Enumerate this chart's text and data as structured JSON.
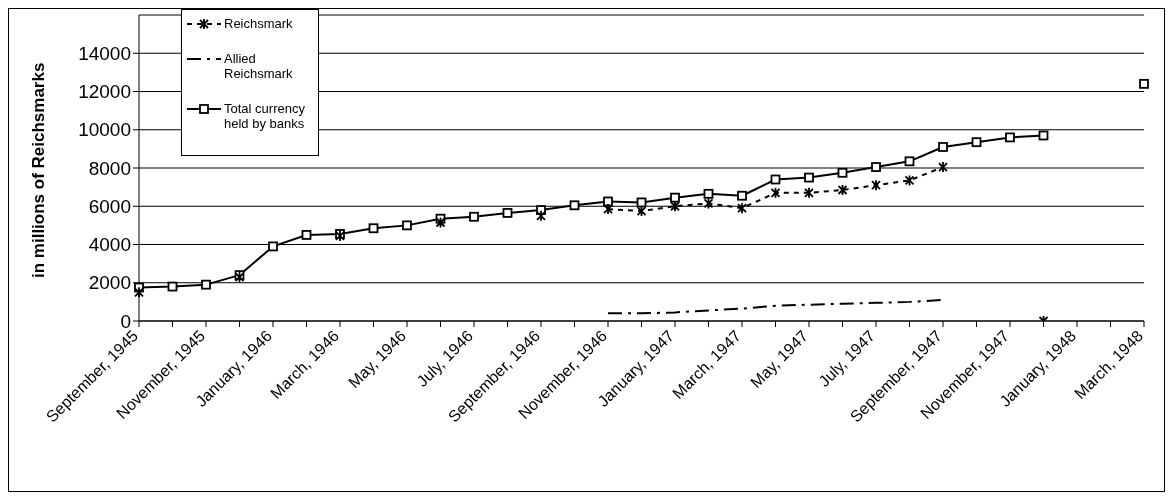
{
  "chart_data": {
    "type": "line",
    "categories": [
      "September, 1945",
      null,
      "November, 1945",
      null,
      "January, 1946",
      null,
      "March, 1946",
      null,
      "May, 1946",
      null,
      "July, 1946",
      null,
      "September, 1946",
      null,
      "November, 1946",
      null,
      "January, 1947",
      null,
      "March, 1947",
      null,
      "May, 1947",
      null,
      "July, 1947",
      null,
      "September, 1947",
      null,
      "November, 1947",
      null,
      "January, 1948",
      null,
      "March, 1948"
    ],
    "series": [
      {
        "name": "Reichsmark",
        "color": "#000000",
        "marker": "cross",
        "line_style": "dashed",
        "values": [
          1500,
          null,
          null,
          2300,
          null,
          null,
          4450,
          null,
          null,
          5150,
          null,
          null,
          5500,
          null,
          5850,
          5750,
          6000,
          6150,
          5900,
          6700,
          6700,
          6850,
          7100,
          7350,
          8050,
          null,
          null,
          0,
          null,
          null,
          null
        ]
      },
      {
        "name": "Allied Reichsmark",
        "color": "#000000",
        "marker": "none",
        "line_style": "dashdot",
        "values": [
          null,
          null,
          null,
          null,
          null,
          null,
          null,
          null,
          null,
          null,
          null,
          null,
          null,
          null,
          400,
          400,
          450,
          550,
          650,
          800,
          850,
          900,
          950,
          1000,
          1100,
          null,
          null,
          null,
          null,
          null,
          null
        ]
      },
      {
        "name": "Total currency held by banks",
        "color": "#000000",
        "marker": "square",
        "line_style": "solid",
        "values": [
          1750,
          1800,
          1900,
          2400,
          3900,
          4500,
          4550,
          4850,
          5000,
          5350,
          5450,
          5650,
          5800,
          6050,
          6250,
          6200,
          6450,
          6650,
          6550,
          7400,
          7500,
          7750,
          8050,
          8350,
          9100,
          9350,
          9600,
          9700,
          null,
          null,
          12400
        ]
      }
    ],
    "ylabel": "in millions of Reichsmarks",
    "ylim": [
      0,
      16000
    ],
    "yticks": [
      0,
      2000,
      4000,
      6000,
      8000,
      10000,
      12000,
      14000
    ],
    "grid": "y",
    "legend": "top left"
  }
}
